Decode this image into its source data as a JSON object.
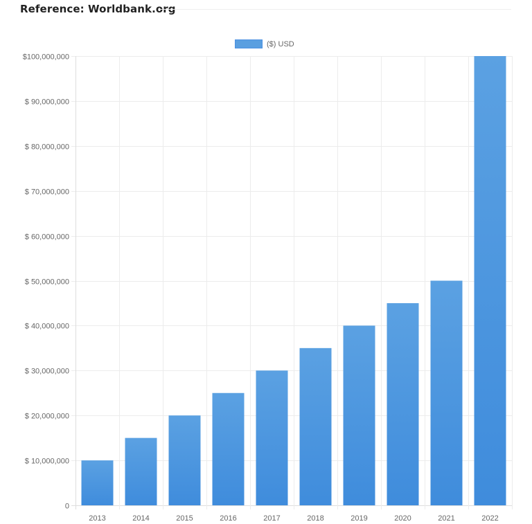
{
  "header": {
    "title": "Reference: Worldbank.org"
  },
  "chart_data": {
    "type": "bar",
    "title": "",
    "xlabel": "",
    "ylabel": "",
    "legend": {
      "position": "top",
      "entries": [
        "($) USD"
      ]
    },
    "categories": [
      "2013",
      "2014",
      "2015",
      "2016",
      "2017",
      "2018",
      "2019",
      "2020",
      "2021",
      "2022"
    ],
    "series": [
      {
        "name": "($) USD",
        "color": "#4a90e2",
        "values": [
          10000000,
          15000000,
          20000000,
          25000000,
          30000000,
          35000000,
          40000000,
          45000000,
          50000000,
          100000000
        ]
      }
    ],
    "ylim": [
      0,
      100000000
    ],
    "yticks": [
      0,
      10000000,
      20000000,
      30000000,
      40000000,
      50000000,
      60000000,
      70000000,
      80000000,
      90000000,
      100000000
    ],
    "ytick_labels": [
      "0",
      "$ 10,000,000",
      "$ 20,000,000",
      "$ 30,000,000",
      "$ 40,000,000",
      "$ 50,000,000",
      "$ 60,000,000",
      "$ 70,000,000",
      "$ 80,000,000",
      "$ 90,000,000",
      "$100,000,000"
    ],
    "grid": true
  }
}
